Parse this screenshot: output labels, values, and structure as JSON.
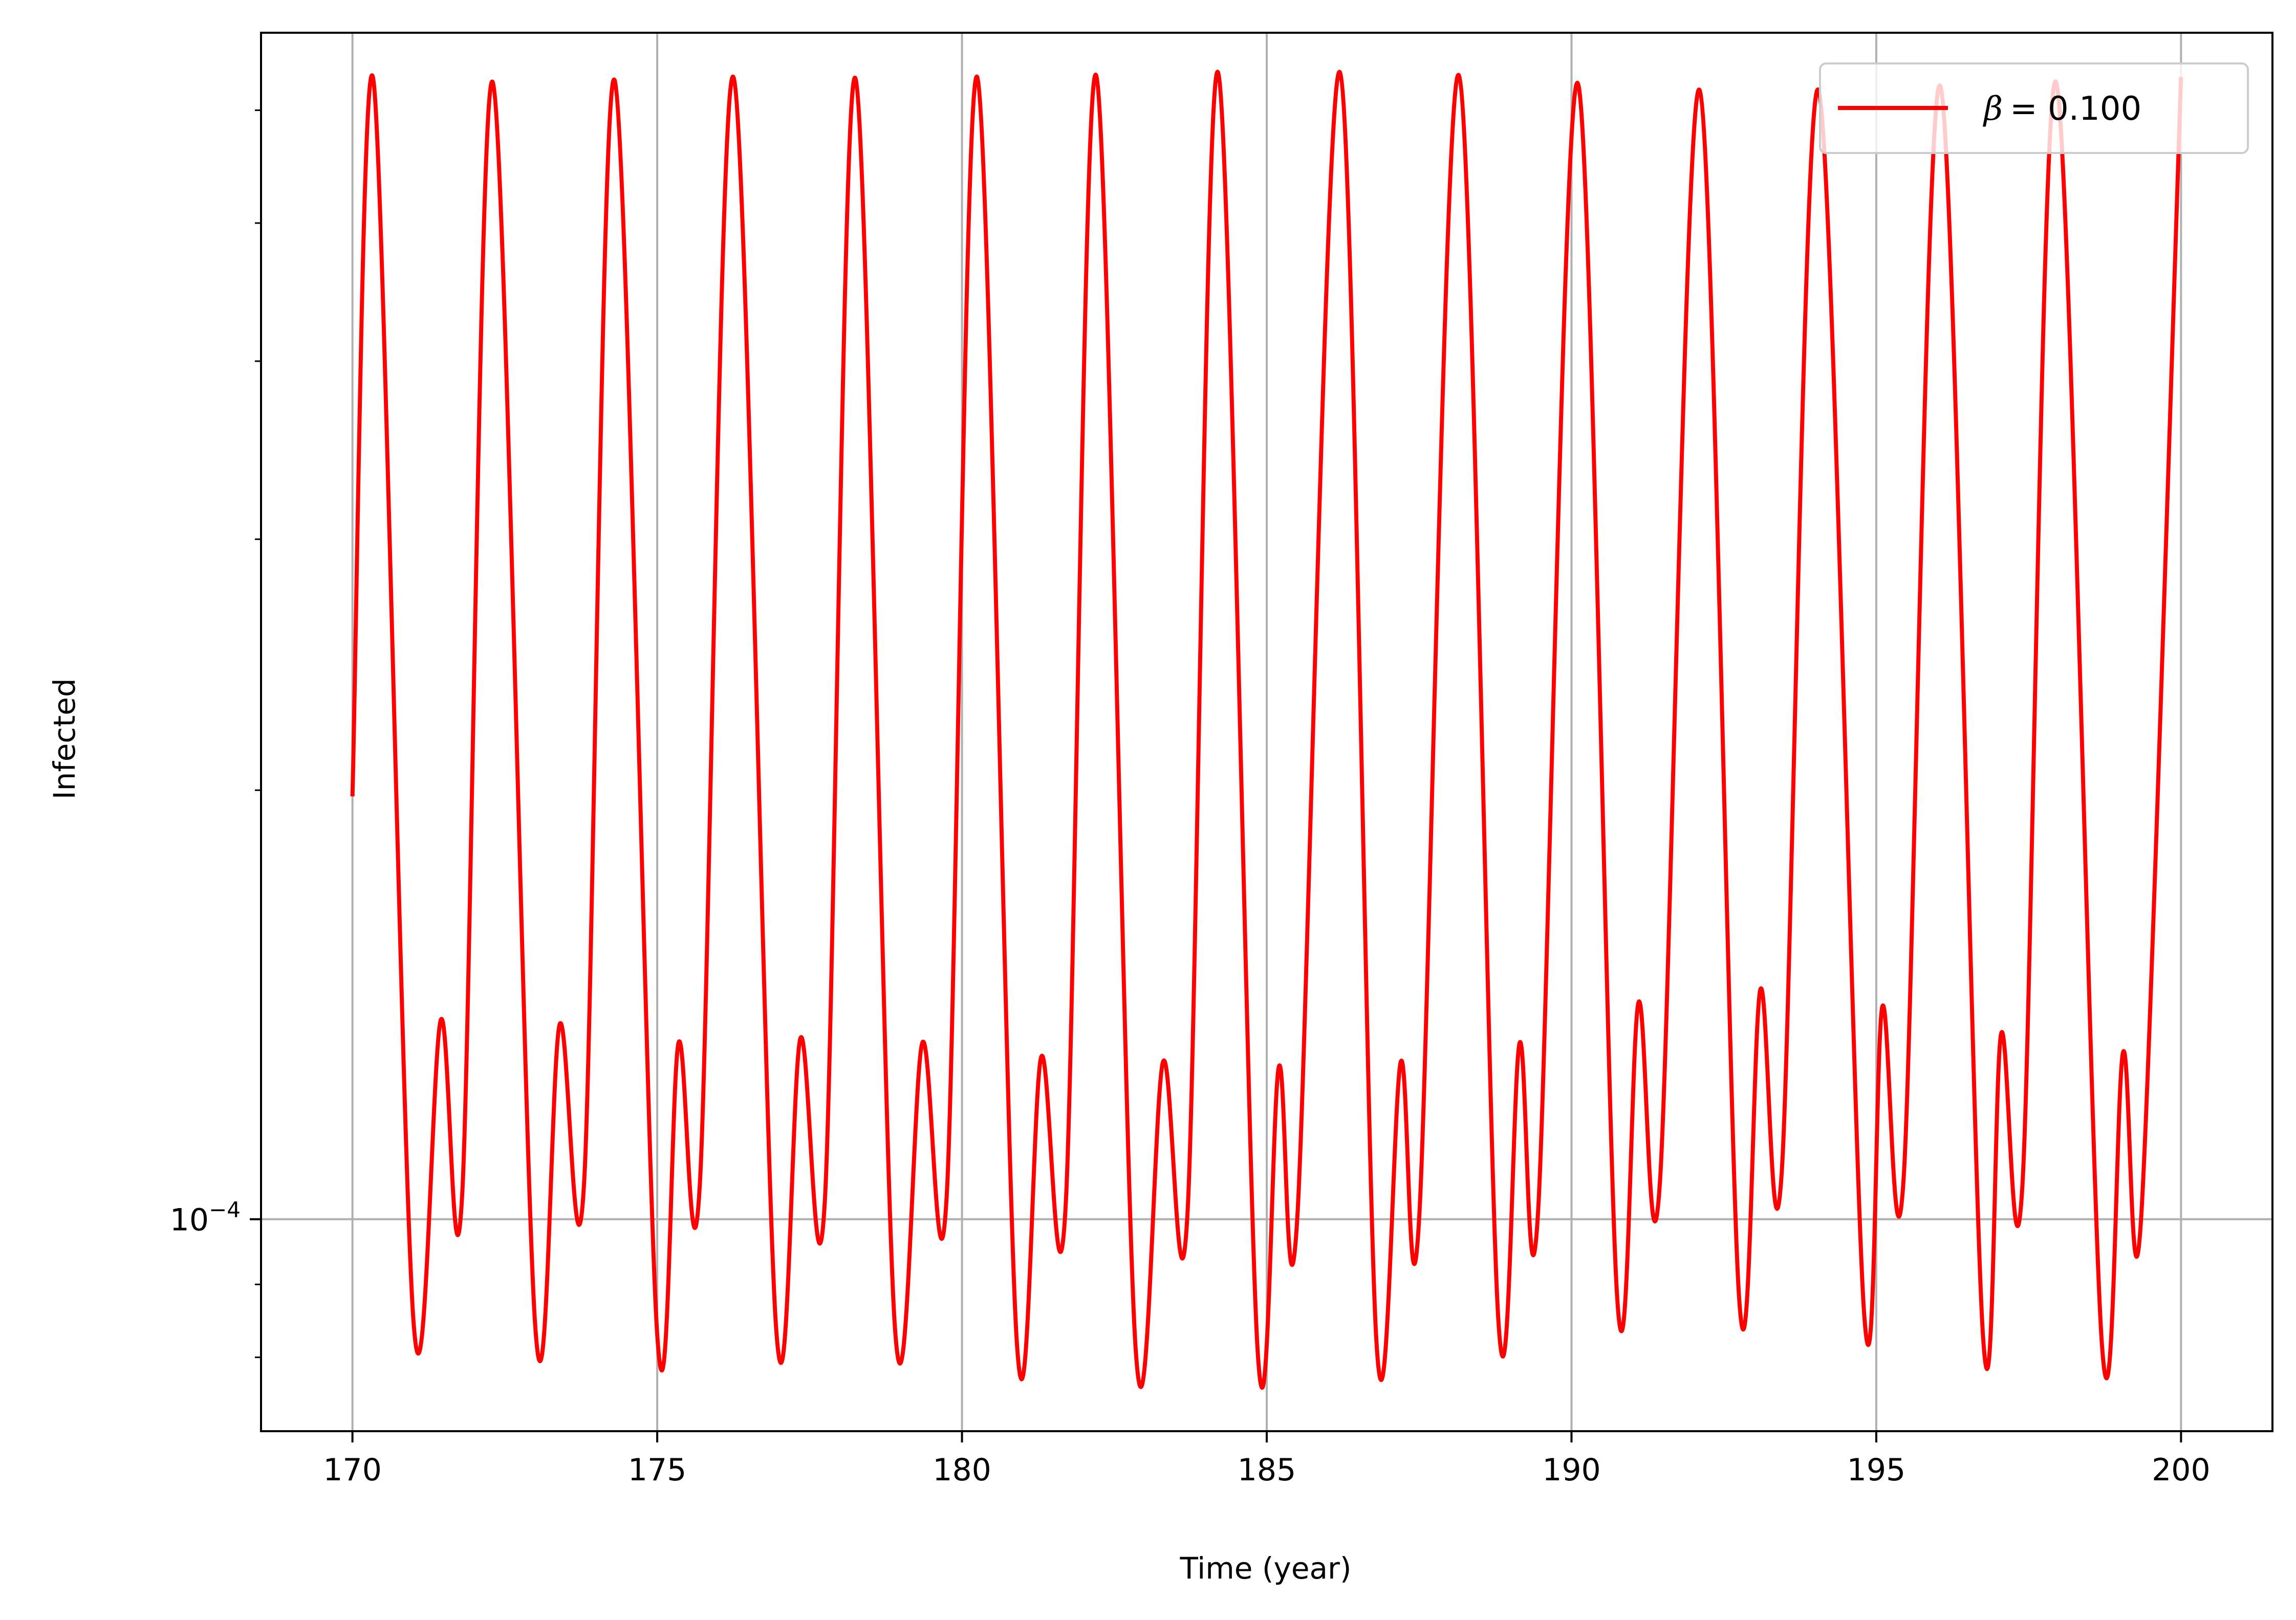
{
  "chart_data": {
    "type": "line",
    "title": "",
    "xlabel": "Time (year)",
    "ylabel": "Infected",
    "x_scale": "linear",
    "y_scale": "log",
    "xlim": [
      168.5,
      201.5
    ],
    "ylim": [
      7.1e-05,
      0.00068
    ],
    "x_ticks": [
      170,
      175,
      180,
      185,
      190,
      195,
      200
    ],
    "y_major_ticks": [
      0.0001
    ],
    "y_major_tick_labels": [
      "10"
    ],
    "y_major_tick_exponent": "−4",
    "y_minor_ticks": [
      8e-05,
      9e-05,
      0.0002,
      0.0003,
      0.0004,
      0.0005,
      0.0006
    ],
    "grid": true,
    "legend_position": "top-right",
    "series": [
      {
        "name": "β = 0.100",
        "legend_symbol": "β",
        "legend_value_text": "= 0.100",
        "color": "#ff0000",
        "x": [
          170.0,
          170.35,
          171.0,
          171.45,
          171.8,
          172.3,
          173.0,
          173.4,
          173.8,
          174.3,
          175.0,
          175.35,
          175.7,
          176.25,
          176.95,
          177.35,
          177.75,
          178.25,
          178.9,
          179.35,
          179.75,
          180.25,
          180.9,
          181.3,
          181.7,
          182.2,
          182.85,
          183.3,
          183.7,
          184.2,
          184.85,
          185.2,
          185.5,
          186.2,
          186.8,
          187.2,
          187.5,
          188.15,
          188.8,
          189.15,
          189.45,
          190.1,
          190.75,
          191.1,
          191.45,
          192.1,
          192.75,
          193.1,
          193.45,
          194.05,
          194.8,
          195.1,
          195.45,
          196.05,
          196.75,
          197.05,
          197.4,
          197.95,
          198.7,
          199.05,
          199.35,
          200.0
        ],
        "y": [
          0.000198,
          0.000627,
          8.5e-05,
          0.000138,
          0.000104,
          0.000628,
          8.4e-05,
          0.000137,
          0.000106,
          0.00063,
          8.3e-05,
          0.000133,
          0.000106,
          0.000633,
          8.4e-05,
          0.000134,
          0.000103,
          0.000632,
          8.4e-05,
          0.000133,
          0.000104,
          0.000633,
          8.2e-05,
          0.00013,
          0.000102,
          0.000635,
          8.1e-05,
          0.000129,
          0.000101,
          0.000638,
          8.1e-05,
          0.000128,
          0.0001,
          0.000638,
          8.2e-05,
          0.000129,
          0.0001,
          0.000635,
          8.5e-05,
          0.000133,
          0.000101,
          0.000627,
          8.8e-05,
          0.000142,
          0.000106,
          0.00062,
          8.8e-05,
          0.000145,
          0.000108,
          0.00062,
          8.6e-05,
          0.000141,
          0.000107,
          0.000624,
          8.3e-05,
          0.000135,
          0.000106,
          0.000628,
          8.2e-05,
          0.000131,
          0.000101,
          0.000633
        ]
      }
    ]
  }
}
